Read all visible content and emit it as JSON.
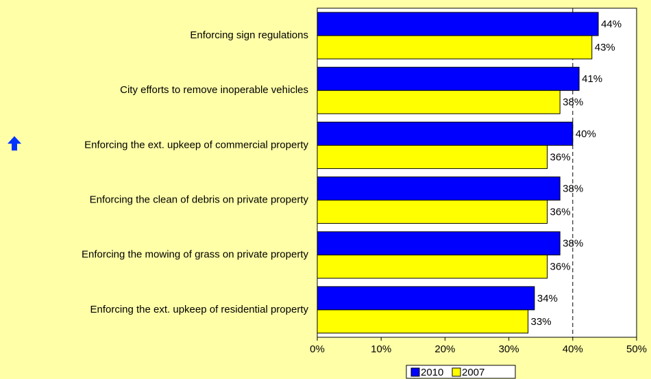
{
  "chart_data": {
    "type": "bar",
    "orientation": "horizontal",
    "categories": [
      "Enforcing sign regulations",
      "City efforts to remove inoperable vehicles",
      "Enforcing the ext. upkeep of commercial property",
      "Enforcing the clean of debris on private property",
      "Enforcing the mowing of grass on private property",
      "Enforcing the ext. upkeep of residential property"
    ],
    "series": [
      {
        "name": "2010",
        "color": "#0000ff",
        "values": [
          44,
          41,
          40,
          38,
          38,
          34
        ],
        "value_labels": [
          "44%",
          "41%",
          "40%",
          "38%",
          "38%",
          "34%"
        ]
      },
      {
        "name": "2007",
        "color": "#ffff00",
        "values": [
          43,
          38,
          36,
          36,
          36,
          33
        ],
        "value_labels": [
          "43%",
          "38%",
          "36%",
          "36%",
          "36%",
          "33%"
        ]
      }
    ],
    "xlim": [
      0,
      50
    ],
    "xticks": [
      {
        "value": 0,
        "label": "0%"
      },
      {
        "value": 10,
        "label": "10%"
      },
      {
        "value": 20,
        "label": "20%"
      },
      {
        "value": 30,
        "label": "30%"
      },
      {
        "value": 40,
        "label": "40%"
      },
      {
        "value": 50,
        "label": "50%"
      }
    ],
    "reference_line": 40,
    "legend": "bottom"
  }
}
